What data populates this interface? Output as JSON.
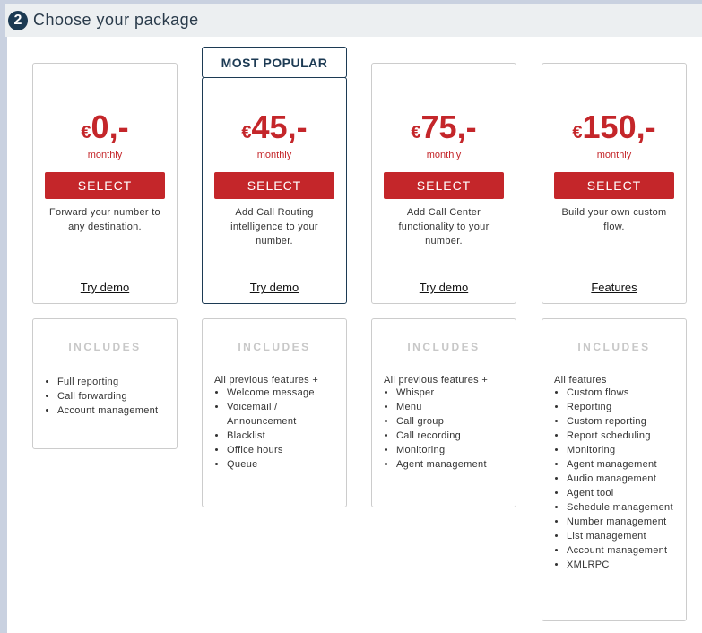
{
  "header": {
    "step": "2",
    "title": "Choose your package"
  },
  "popular_label": "MOST POPULAR",
  "packages": [
    {
      "currency": "€",
      "price": "0,-",
      "period": "monthly",
      "select": "SELECT",
      "desc": "Forward your number to any destination.",
      "link": "Try demo",
      "includes_title": "INCLUDES",
      "lead": "",
      "features": [
        "Full reporting",
        "Call forwarding",
        "Account management"
      ]
    },
    {
      "currency": "€",
      "price": "45,-",
      "period": "monthly",
      "select": "SELECT",
      "desc": "Add Call Routing intelligence to your number.",
      "link": "Try demo",
      "includes_title": "INCLUDES",
      "lead": "All previous features +",
      "features": [
        "Welcome message",
        "Voicemail / Announcement",
        "Blacklist",
        "Office hours",
        "Queue"
      ]
    },
    {
      "currency": "€",
      "price": "75,-",
      "period": "monthly",
      "select": "SELECT",
      "desc": "Add Call Center functionality to your number.",
      "link": "Try demo",
      "includes_title": "INCLUDES",
      "lead": "All previous features +",
      "features": [
        "Whisper",
        "Menu",
        "Call group",
        "Call recording",
        "Monitoring",
        "Agent management"
      ]
    },
    {
      "currency": "€",
      "price": "150,-",
      "period": "monthly",
      "select": "SELECT",
      "desc": "Build your own custom flow.",
      "link": "Features",
      "includes_title": "INCLUDES",
      "lead": "All features",
      "features": [
        "Custom flows",
        "Reporting",
        "Custom reporting",
        "Report scheduling",
        "Monitoring",
        "Agent management",
        "Audio management",
        "Agent tool",
        "Schedule management",
        "Number management",
        "List management",
        "Account management",
        "XMLRPC"
      ]
    }
  ]
}
